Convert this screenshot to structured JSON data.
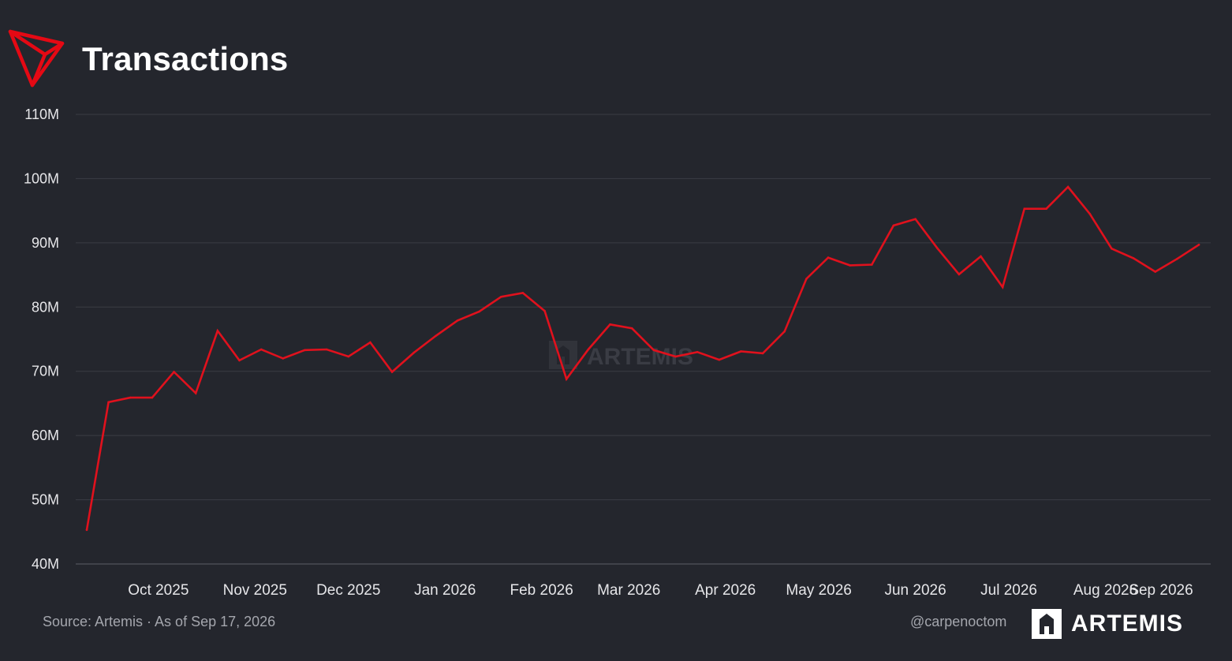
{
  "header": {
    "title": "Transactions",
    "logo_icon": "tron-triangle-logo-icon"
  },
  "footer": {
    "source": "Source: Artemis · As of Sep 17, 2026",
    "handle": "@carpenoctom",
    "brand": "ARTEMIS",
    "brand_icon": "artemis-logo-icon"
  },
  "watermark": {
    "text": "ARTEMIS",
    "icon": "artemis-watermark-icon"
  },
  "colors": {
    "background": "#24262d",
    "line": "#e0111d",
    "grid": "#3a3c44",
    "accent": "#e50914"
  },
  "chart_data": {
    "type": "line",
    "title": "Transactions",
    "xlabel": "",
    "ylabel": "",
    "ylim": [
      40,
      110
    ],
    "y_unit": "M",
    "y_ticks": [
      "110M",
      "100M",
      "90M",
      "80M",
      "70M",
      "60M",
      "50M",
      "40M"
    ],
    "x_ticks": [
      "Oct 2025",
      "Nov 2025",
      "Dec 2025",
      "Jan 2026",
      "Feb 2026",
      "Mar 2026",
      "Apr 2026",
      "May 2026",
      "Jun 2026",
      "Jul 2026",
      "Aug 2026",
      "Sep 2026"
    ],
    "x": [
      "2025-09-20",
      "2025-09-27",
      "2025-10-04",
      "2025-10-11",
      "2025-10-18",
      "2025-10-25",
      "2025-11-01",
      "2025-11-08",
      "2025-11-15",
      "2025-11-22",
      "2025-11-29",
      "2025-12-06",
      "2025-12-13",
      "2025-12-20",
      "2025-12-27",
      "2026-01-03",
      "2026-01-10",
      "2026-01-17",
      "2026-01-24",
      "2026-01-31",
      "2026-02-07",
      "2026-02-14",
      "2026-02-21",
      "2026-02-28",
      "2026-03-07",
      "2026-03-14",
      "2026-03-21",
      "2026-03-28",
      "2026-04-04",
      "2026-04-11",
      "2026-04-18",
      "2026-04-25",
      "2026-05-02",
      "2026-05-09",
      "2026-05-16",
      "2026-05-23",
      "2026-05-30",
      "2026-06-06",
      "2026-06-13",
      "2026-06-20",
      "2026-06-27",
      "2026-07-04",
      "2026-07-11",
      "2026-07-18",
      "2026-07-25",
      "2026-08-01",
      "2026-08-08",
      "2026-08-15",
      "2026-08-22",
      "2026-08-29",
      "2026-09-05",
      "2026-09-12"
    ],
    "series": [
      {
        "values": [
          45.3,
          65.2,
          65.9,
          65.9,
          69.9,
          66.6,
          76.3,
          71.7,
          73.4,
          72.0,
          73.3,
          73.4,
          72.3,
          74.5,
          69.9,
          72.9,
          75.5,
          77.9,
          79.3,
          81.6,
          82.2,
          79.4,
          68.8,
          73.4,
          77.3,
          76.7,
          73.3,
          72.3,
          73.0,
          71.8,
          73.1,
          72.8,
          76.2,
          84.4,
          87.7,
          86.5,
          86.6,
          92.7,
          93.7,
          89.2,
          85.1,
          87.9,
          83.1,
          95.3,
          95.3,
          98.7,
          94.5,
          89.1,
          87.6,
          85.5,
          87.5,
          89.7
        ]
      }
    ]
  }
}
